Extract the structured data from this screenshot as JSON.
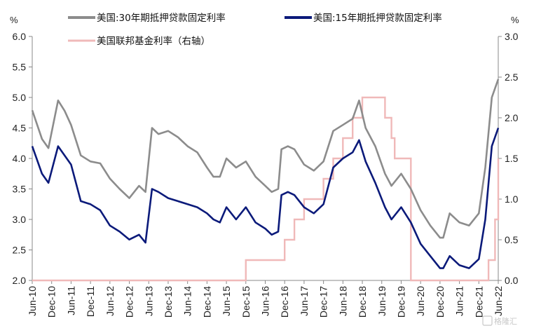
{
  "chart_data": {
    "type": "line",
    "left_unit": "%",
    "right_unit": "%",
    "ylim_left": [
      2.0,
      6.0
    ],
    "ylim_right": [
      0.0,
      3.0
    ],
    "left_ticks": [
      "2.0",
      "2.5",
      "3.0",
      "3.5",
      "4.0",
      "4.5",
      "5.0",
      "5.5",
      "6.0"
    ],
    "right_ticks": [
      "0.0",
      "0.5",
      "1.0",
      "1.5",
      "2.0",
      "2.5",
      "3.0"
    ],
    "x_ticks": [
      "Jun-10",
      "Dec-10",
      "Jun-11",
      "Dec-11",
      "Jun-12",
      "Dec-12",
      "Jun-13",
      "Dec-13",
      "Jun-14",
      "Dec-14",
      "Jun-15",
      "Dec-15",
      "Jun-16",
      "Dec-16",
      "Jun-17",
      "Dec-17",
      "Jun-18",
      "Dec-18",
      "Jun-19",
      "Dec-19",
      "Jun-20",
      "Dec-20",
      "Jun-21",
      "Dec-21",
      "Jun-22"
    ],
    "grid": false,
    "legend_position": "top",
    "watermark": "格隆汇",
    "series": [
      {
        "name": "美国:30年期抵押贷款固定利率",
        "axis": "left",
        "color": "#8c8c8c",
        "x": [
          "2010-06",
          "2010-09",
          "2010-11",
          "2011-02",
          "2011-04",
          "2011-06",
          "2011-09",
          "2011-12",
          "2012-03",
          "2012-06",
          "2012-09",
          "2012-12",
          "2013-03",
          "2013-05",
          "2013-07",
          "2013-09",
          "2013-12",
          "2014-03",
          "2014-06",
          "2014-09",
          "2014-12",
          "2015-02",
          "2015-04",
          "2015-06",
          "2015-09",
          "2015-12",
          "2016-03",
          "2016-06",
          "2016-08",
          "2016-10",
          "2016-11",
          "2017-01",
          "2017-03",
          "2017-06",
          "2017-09",
          "2017-12",
          "2018-03",
          "2018-06",
          "2018-09",
          "2018-11",
          "2019-01",
          "2019-04",
          "2019-07",
          "2019-09",
          "2019-12",
          "2020-03",
          "2020-06",
          "2020-09",
          "2020-12",
          "2021-01",
          "2021-03",
          "2021-06",
          "2021-09",
          "2021-12",
          "2022-02",
          "2022-04",
          "2022-06"
        ],
        "values": [
          4.79,
          4.32,
          4.17,
          4.95,
          4.78,
          4.55,
          4.05,
          3.95,
          3.92,
          3.67,
          3.5,
          3.35,
          3.55,
          3.45,
          4.5,
          4.4,
          4.45,
          4.35,
          4.2,
          4.1,
          3.85,
          3.7,
          3.7,
          4.0,
          3.85,
          3.95,
          3.7,
          3.55,
          3.45,
          3.5,
          4.15,
          4.2,
          4.15,
          3.9,
          3.8,
          3.95,
          4.45,
          4.55,
          4.65,
          4.95,
          4.5,
          4.2,
          3.75,
          3.55,
          3.75,
          3.5,
          3.15,
          2.9,
          2.7,
          2.7,
          3.1,
          2.95,
          2.9,
          3.1,
          3.85,
          5.0,
          5.3
        ]
      },
      {
        "name": "美国:15年期抵押贷款固定利率",
        "axis": "left",
        "color": "#0b1a7a",
        "x": [
          "2010-06",
          "2010-09",
          "2010-11",
          "2011-02",
          "2011-04",
          "2011-06",
          "2011-09",
          "2011-12",
          "2012-03",
          "2012-06",
          "2012-09",
          "2012-12",
          "2013-03",
          "2013-05",
          "2013-07",
          "2013-09",
          "2013-12",
          "2014-03",
          "2014-06",
          "2014-09",
          "2014-12",
          "2015-02",
          "2015-04",
          "2015-06",
          "2015-09",
          "2015-12",
          "2016-03",
          "2016-06",
          "2016-08",
          "2016-10",
          "2016-11",
          "2017-01",
          "2017-03",
          "2017-06",
          "2017-09",
          "2017-12",
          "2018-03",
          "2018-06",
          "2018-09",
          "2018-11",
          "2019-01",
          "2019-04",
          "2019-07",
          "2019-09",
          "2019-12",
          "2020-03",
          "2020-06",
          "2020-09",
          "2020-12",
          "2021-01",
          "2021-03",
          "2021-06",
          "2021-09",
          "2021-12",
          "2022-02",
          "2022-04",
          "2022-06"
        ],
        "values": [
          4.2,
          3.75,
          3.6,
          4.2,
          4.05,
          3.9,
          3.3,
          3.25,
          3.15,
          2.9,
          2.8,
          2.67,
          2.75,
          2.62,
          3.5,
          3.45,
          3.35,
          3.3,
          3.25,
          3.2,
          3.1,
          3.0,
          2.95,
          3.2,
          3.0,
          3.2,
          2.95,
          2.85,
          2.75,
          2.8,
          3.4,
          3.45,
          3.4,
          3.2,
          3.1,
          3.25,
          3.85,
          4.0,
          4.1,
          4.3,
          3.95,
          3.6,
          3.2,
          3.0,
          3.2,
          2.95,
          2.6,
          2.4,
          2.2,
          2.2,
          2.4,
          2.25,
          2.2,
          2.35,
          3.0,
          4.2,
          4.5
        ]
      },
      {
        "name": "美国联邦基金利率（右轴）",
        "axis": "right",
        "color": "#f0b9b9",
        "x": [
          "2010-06",
          "2015-12",
          "2016-12",
          "2017-03",
          "2017-06",
          "2017-12",
          "2018-03",
          "2018-06",
          "2018-09",
          "2018-12",
          "2019-07",
          "2019-09",
          "2019-10",
          "2020-03",
          "2022-03",
          "2022-05",
          "2022-06"
        ],
        "values": [
          0.0,
          0.25,
          0.5,
          0.75,
          1.0,
          1.25,
          1.5,
          1.75,
          2.0,
          2.25,
          2.0,
          1.75,
          1.5,
          0.0,
          0.25,
          0.75,
          1.5
        ]
      }
    ]
  }
}
